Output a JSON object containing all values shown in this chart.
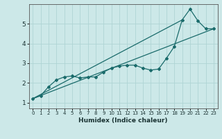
{
  "xlabel": "Humidex (Indice chaleur)",
  "ylabel": "",
  "bg_color": "#cce8e8",
  "line_color": "#1a6b6b",
  "grid_color": "#afd4d4",
  "xlim": [
    -0.5,
    23.5
  ],
  "ylim": [
    0.7,
    6.0
  ],
  "xticks": [
    0,
    1,
    2,
    3,
    4,
    5,
    6,
    7,
    8,
    9,
    10,
    11,
    12,
    13,
    14,
    15,
    16,
    17,
    18,
    19,
    20,
    21,
    22,
    23
  ],
  "yticks": [
    1,
    2,
    3,
    4,
    5
  ],
  "line1_x": [
    0,
    1,
    2,
    3,
    4,
    5,
    6,
    7,
    8,
    9,
    10,
    11,
    12,
    13,
    14,
    15,
    16,
    17,
    18,
    19,
    20,
    21,
    22,
    23
  ],
  "line1_y": [
    1.2,
    1.35,
    1.8,
    2.15,
    2.3,
    2.35,
    2.25,
    2.3,
    2.3,
    2.55,
    2.75,
    2.85,
    2.9,
    2.9,
    2.75,
    2.65,
    2.7,
    3.25,
    3.85,
    5.2,
    5.75,
    5.15,
    4.75,
    4.75
  ],
  "line2_x": [
    0,
    23
  ],
  "line2_y": [
    1.2,
    4.75
  ],
  "line3_x": [
    0,
    19
  ],
  "line3_y": [
    1.2,
    5.2
  ]
}
